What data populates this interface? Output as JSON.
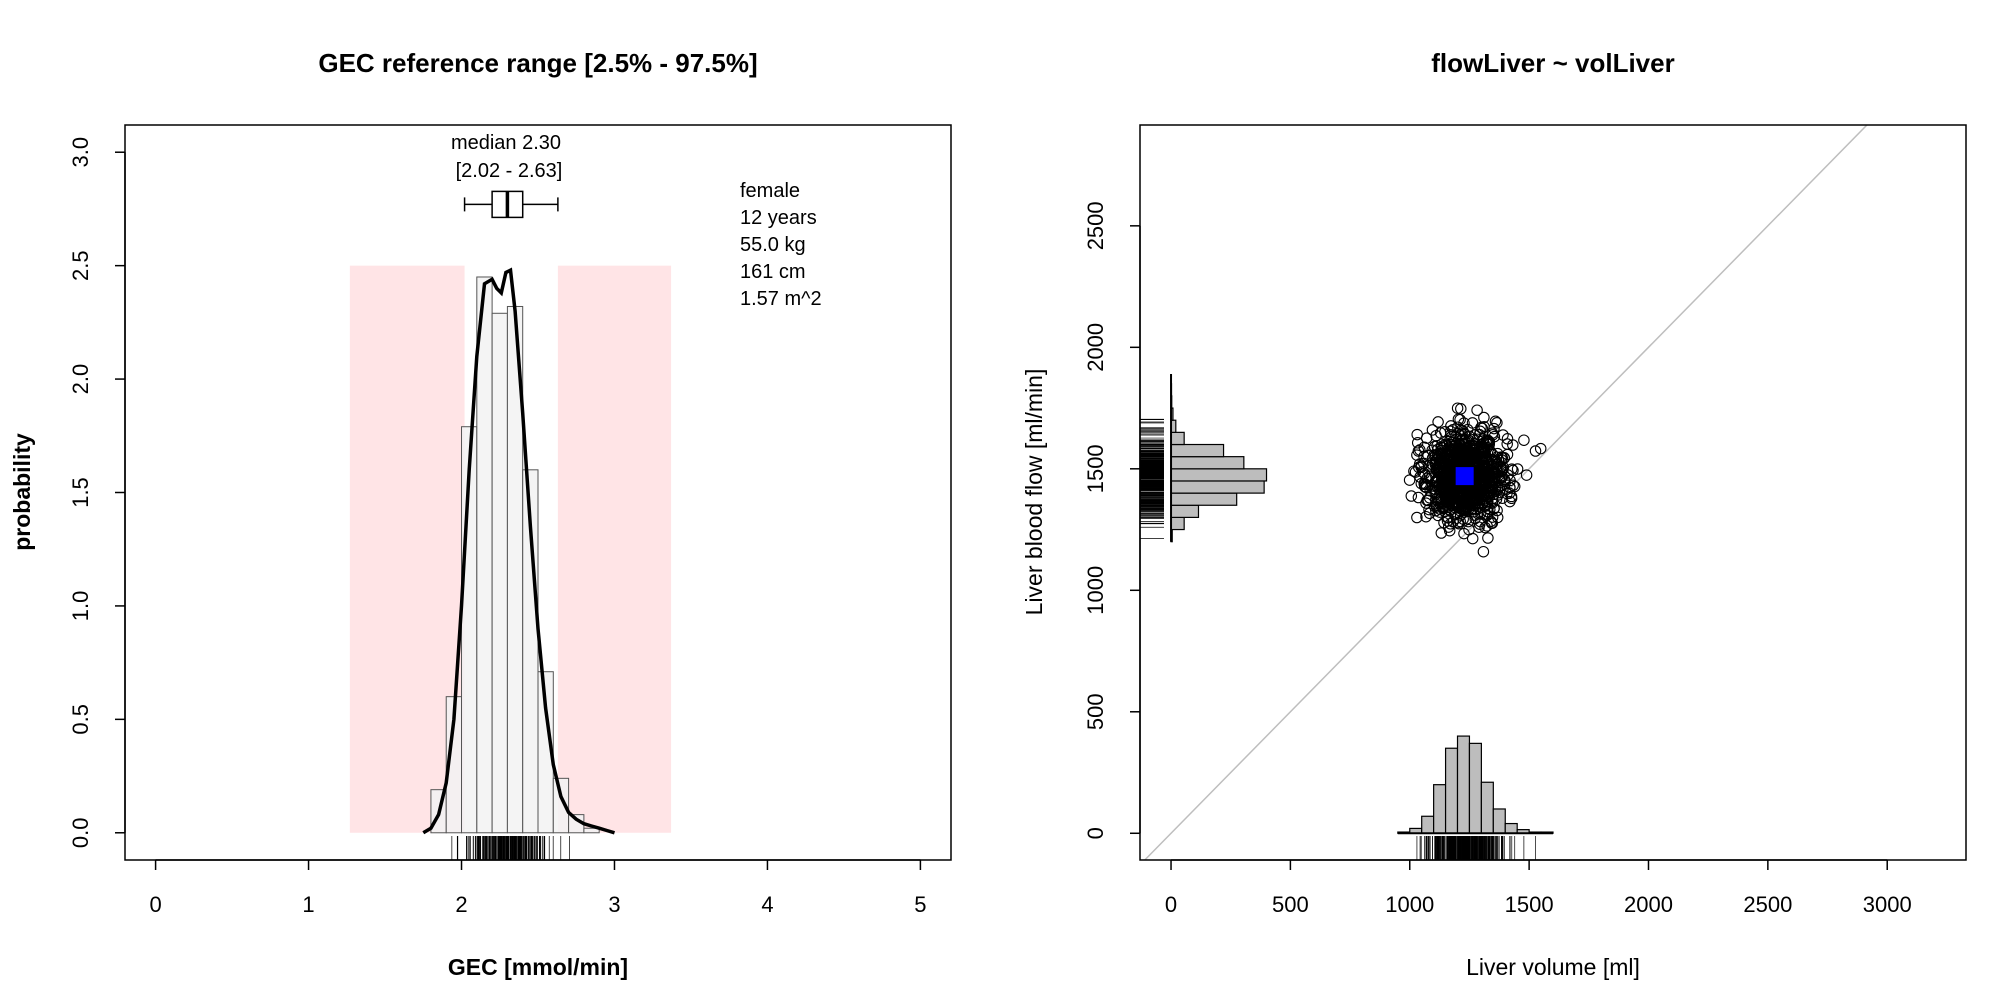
{
  "chart_data": [
    {
      "type": "histogram",
      "title": "GEC reference range [2.5% - 97.5%]",
      "xlabel": "GEC [mmol/min]",
      "ylabel": "probability",
      "xlim": [
        -0.2,
        5.2
      ],
      "ylim": [
        -0.12,
        3.12
      ],
      "xticks": [
        0,
        1,
        2,
        3,
        4,
        5
      ],
      "yticks": [
        0.0,
        0.5,
        1.0,
        1.5,
        2.0,
        2.5,
        3.0
      ],
      "xtick_labels": [
        "0",
        "1",
        "2",
        "3",
        "4",
        "5"
      ],
      "ytick_labels": [
        "0.0",
        "0.5",
        "1.0",
        "1.5",
        "2.0",
        "2.5",
        "3.0"
      ],
      "reference_band": {
        "outer_low": 1.27,
        "low": 2.02,
        "high": 2.63,
        "outer_high": 3.37,
        "height": 2.5,
        "color": "#ffe4e6"
      },
      "histogram": {
        "bin_width": 0.1,
        "bin_starts": [
          1.8,
          1.9,
          2.0,
          2.1,
          2.2,
          2.3,
          2.4,
          2.5,
          2.6,
          2.7,
          2.8
        ],
        "values": [
          0.19,
          0.6,
          1.79,
          2.45,
          2.29,
          2.32,
          1.6,
          0.71,
          0.24,
          0.08,
          0.02
        ]
      },
      "density": {
        "x": [
          1.75,
          1.8,
          1.85,
          1.9,
          1.95,
          2.0,
          2.05,
          2.1,
          2.15,
          2.2,
          2.23,
          2.26,
          2.29,
          2.32,
          2.35,
          2.4,
          2.45,
          2.5,
          2.55,
          2.6,
          2.65,
          2.7,
          2.75,
          2.8,
          2.85,
          2.9,
          2.95,
          3.0
        ],
        "y": [
          0.0,
          0.02,
          0.08,
          0.22,
          0.5,
          1.0,
          1.6,
          2.1,
          2.42,
          2.44,
          2.4,
          2.38,
          2.47,
          2.48,
          2.3,
          1.85,
          1.35,
          0.9,
          0.55,
          0.3,
          0.16,
          0.09,
          0.06,
          0.04,
          0.03,
          0.02,
          0.01,
          0.0
        ]
      },
      "boxplot": {
        "whisker_low": 2.02,
        "q1": 2.2,
        "median": 2.3,
        "q3": 2.4,
        "whisker_high": 2.63,
        "y": 2.77
      },
      "median_label": "median 2.30",
      "ci_label": "[2.02 - 2.63]",
      "subject_info": [
        "female",
        "12 years",
        "55.0 kg",
        "161 cm",
        "1.57 m^2"
      ],
      "rug": {
        "min": 1.85,
        "max": 2.92,
        "center": 2.3,
        "spread": 0.13,
        "count": 200
      },
      "colors": {
        "histogram": "#f2f2f2",
        "density": "#000000"
      }
    },
    {
      "type": "scatter",
      "title": "flowLiver ~ volLiver",
      "xlabel": "Liver volume [ml]",
      "ylabel": "Liver blood flow [ml/min]",
      "xlim": [
        -130,
        3330
      ],
      "ylim": [
        -110,
        2915
      ],
      "xticks": [
        0,
        500,
        1000,
        1500,
        2000,
        2500,
        3000
      ],
      "yticks": [
        0,
        500,
        1000,
        1500,
        2000,
        2500
      ],
      "xtick_labels": [
        "0",
        "500",
        "1000",
        "1500",
        "2000",
        "2500",
        "3000"
      ],
      "ytick_labels": [
        "0",
        "500",
        "1000",
        "1500",
        "2000",
        "2500"
      ],
      "identity_line": true,
      "highlight_point": {
        "x": 1230,
        "y": 1470,
        "color": "#0000ff"
      },
      "cloud": {
        "center_x": 1230,
        "center_y": 1470,
        "sd_x": 85,
        "sd_y": 95,
        "count": 1000
      },
      "x_marginal_histogram": {
        "bin_width": 50,
        "bin_starts": [
          950,
          1000,
          1050,
          1100,
          1150,
          1200,
          1250,
          1300,
          1350,
          1400,
          1450,
          1500,
          1550
        ],
        "heights": [
          5,
          20,
          70,
          200,
          350,
          400,
          370,
          210,
          100,
          40,
          15,
          5,
          5
        ]
      },
      "y_marginal_histogram": {
        "bin_width": 50,
        "bin_starts": [
          1200,
          1250,
          1300,
          1350,
          1400,
          1450,
          1500,
          1550,
          1600,
          1650,
          1700,
          1750,
          1800
        ],
        "heights": [
          5,
          55,
          115,
          275,
          390,
          400,
          305,
          220,
          55,
          20,
          8,
          3,
          2
        ]
      },
      "marginal_ranges": {
        "x_axis": [
          950,
          1600
        ],
        "y_axis": [
          1200,
          1890
        ]
      },
      "colors": {
        "marginal": "#bdbdbd",
        "identity_line": "#bebebe"
      }
    }
  ]
}
